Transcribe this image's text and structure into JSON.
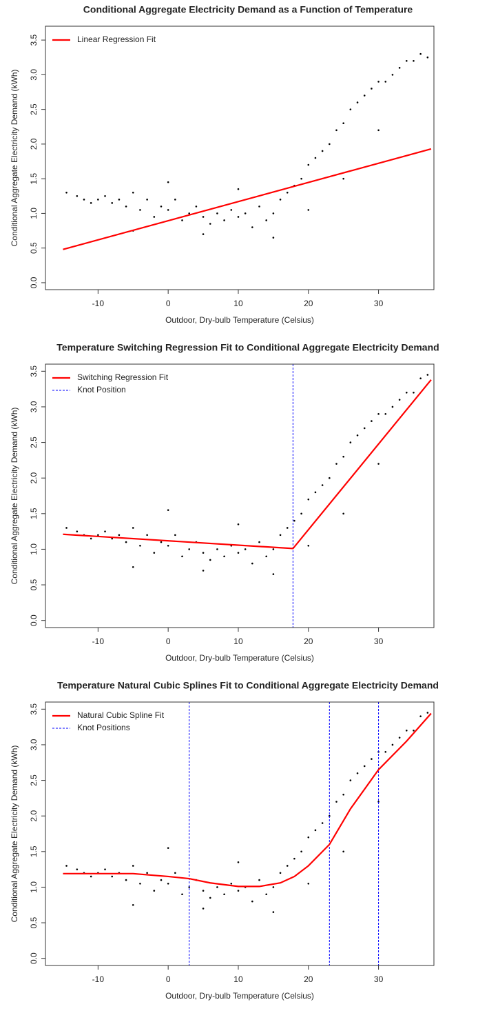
{
  "chart_data": [
    {
      "type": "scatter",
      "title": "Conditional Aggregate Electricity Demand as a Function of Temperature",
      "xlabel": "Outdoor, Dry-bulb Temperature (Celsius)",
      "ylabel": "Conditional Aggregate Electricity Demand (kWh)",
      "xlim": [
        -17.5,
        37.9
      ],
      "ylim": [
        -0.1,
        3.7
      ],
      "xticks": [
        -10,
        0,
        10,
        20,
        30
      ],
      "yticks": [
        {
          "value": 0,
          "label": "0.0"
        },
        0.5,
        {
          "value": 1,
          "label": "1.0"
        },
        1.5,
        {
          "value": 2,
          "label": "2.0"
        },
        2.5,
        {
          "value": 3,
          "label": "3.0"
        },
        3.5
      ],
      "points": {
        "color": "#000000",
        "x": [
          -14.5,
          -13,
          -12,
          -11,
          -10,
          -9,
          -8,
          -7,
          -6,
          -5,
          -4,
          -3,
          -2,
          -1,
          0,
          1,
          2,
          3,
          4,
          5,
          6,
          7,
          8,
          9,
          10,
          11,
          12,
          13,
          14,
          15,
          16,
          17,
          18,
          19,
          20,
          21,
          22,
          23,
          24,
          25,
          26,
          27,
          28,
          29,
          30,
          31,
          32,
          33,
          34,
          35,
          36,
          37,
          -5,
          0,
          5,
          10,
          15,
          20,
          25,
          30
        ],
        "y": [
          1.3,
          1.25,
          1.2,
          1.15,
          1.2,
          1.25,
          1.15,
          1.2,
          1.1,
          1.3,
          1.05,
          1.2,
          0.95,
          1.1,
          1.05,
          1.2,
          0.9,
          1.0,
          1.1,
          0.95,
          0.85,
          1.0,
          0.9,
          1.05,
          0.95,
          1.0,
          0.8,
          1.1,
          0.9,
          1.0,
          1.2,
          1.3,
          1.4,
          1.5,
          1.7,
          1.8,
          1.9,
          2.0,
          2.2,
          2.3,
          2.5,
          2.6,
          2.7,
          2.8,
          2.9,
          2.9,
          3.0,
          3.1,
          3.2,
          3.2,
          3.3,
          3.25,
          0.75,
          1.45,
          0.7,
          1.35,
          0.65,
          1.05,
          1.5,
          2.2
        ]
      },
      "series": [
        {
          "name": "Linear Regression Fit",
          "color": "#ff0000",
          "x": [
            -15,
            37.5
          ],
          "values": [
            0.48,
            1.93
          ]
        }
      ]
    },
    {
      "type": "scatter",
      "title": "Temperature Switching Regression Fit to Conditional Aggregate Electricity Demand",
      "xlabel": "Outdoor, Dry-bulb Temperature (Celsius)",
      "ylabel": "Conditional Aggregate Electricity Demand (kWh)",
      "xlim": [
        -17.5,
        37.9
      ],
      "ylim": [
        -0.1,
        3.6
      ],
      "xticks": [
        -10,
        0,
        10,
        20,
        30
      ],
      "yticks": [
        {
          "value": 0,
          "label": "0.0"
        },
        0.5,
        {
          "value": 1,
          "label": "1.0"
        },
        1.5,
        {
          "value": 2,
          "label": "2.0"
        },
        2.5,
        {
          "value": 3,
          "label": "3.0"
        },
        3.5
      ],
      "points": {
        "color": "#000000",
        "x": [
          -14.5,
          -13,
          -12,
          -11,
          -10,
          -9,
          -8,
          -7,
          -6,
          -5,
          -4,
          -3,
          -2,
          -1,
          0,
          1,
          2,
          3,
          4,
          5,
          6,
          7,
          8,
          9,
          10,
          11,
          12,
          13,
          14,
          15,
          16,
          17,
          18,
          19,
          20,
          21,
          22,
          23,
          24,
          25,
          26,
          27,
          28,
          29,
          30,
          31,
          32,
          33,
          34,
          35,
          36,
          37,
          -5,
          0,
          5,
          10,
          15,
          20,
          25,
          30
        ],
        "y": [
          1.3,
          1.25,
          1.2,
          1.15,
          1.2,
          1.25,
          1.15,
          1.2,
          1.1,
          1.3,
          1.05,
          1.2,
          0.95,
          1.1,
          1.05,
          1.2,
          0.9,
          1.0,
          1.1,
          0.95,
          0.85,
          1.0,
          0.9,
          1.05,
          0.95,
          1.0,
          0.8,
          1.1,
          0.9,
          1.0,
          1.2,
          1.3,
          1.4,
          1.5,
          1.7,
          1.8,
          1.9,
          2.0,
          2.2,
          2.3,
          2.5,
          2.6,
          2.7,
          2.8,
          2.9,
          2.9,
          3.0,
          3.1,
          3.2,
          3.2,
          3.4,
          3.45,
          0.75,
          1.55,
          0.7,
          1.35,
          0.65,
          1.05,
          1.5,
          2.2
        ]
      },
      "series": [
        {
          "name": "Switching Regression Fit",
          "color": "#ff0000",
          "x": [
            -15,
            17.8,
            37.5
          ],
          "values": [
            1.21,
            1.01,
            3.38
          ]
        }
      ],
      "knots": {
        "name": "Knot Position",
        "color": "#0000ff",
        "x": [
          17.8
        ]
      }
    },
    {
      "type": "scatter",
      "title": "Temperature Natural Cubic Splines Fit to Conditional Aggregate Electricity Demand",
      "xlabel": "Outdoor, Dry-bulb Temperature (Celsius)",
      "ylabel": "Conditional Aggregate Electricity Demand (kWh)",
      "xlim": [
        -17.5,
        37.9
      ],
      "ylim": [
        -0.1,
        3.6
      ],
      "xticks": [
        -10,
        0,
        10,
        20,
        30
      ],
      "yticks": [
        {
          "value": 0,
          "label": "0.0"
        },
        0.5,
        {
          "value": 1,
          "label": "1.0"
        },
        1.5,
        {
          "value": 2,
          "label": "2.0"
        },
        2.5,
        {
          "value": 3,
          "label": "3.0"
        },
        3.5
      ],
      "points": {
        "color": "#000000",
        "x": [
          -14.5,
          -13,
          -12,
          -11,
          -10,
          -9,
          -8,
          -7,
          -6,
          -5,
          -4,
          -3,
          -2,
          -1,
          0,
          1,
          2,
          3,
          4,
          5,
          6,
          7,
          8,
          9,
          10,
          11,
          12,
          13,
          14,
          15,
          16,
          17,
          18,
          19,
          20,
          21,
          22,
          23,
          24,
          25,
          26,
          27,
          28,
          29,
          30,
          31,
          32,
          33,
          34,
          35,
          36,
          37,
          -5,
          0,
          5,
          10,
          15,
          20,
          25,
          30
        ],
        "y": [
          1.3,
          1.25,
          1.2,
          1.15,
          1.2,
          1.25,
          1.15,
          1.2,
          1.1,
          1.3,
          1.05,
          1.2,
          0.95,
          1.1,
          1.05,
          1.2,
          0.9,
          1.0,
          1.1,
          0.95,
          0.85,
          1.0,
          0.9,
          1.05,
          0.95,
          1.0,
          0.8,
          1.1,
          0.9,
          1.0,
          1.2,
          1.3,
          1.4,
          1.5,
          1.7,
          1.8,
          1.9,
          2.0,
          2.2,
          2.3,
          2.5,
          2.6,
          2.7,
          2.8,
          2.9,
          2.9,
          3.0,
          3.1,
          3.2,
          3.2,
          3.4,
          3.45,
          0.75,
          1.55,
          0.7,
          1.35,
          0.65,
          1.05,
          1.5,
          2.2
        ]
      },
      "series": [
        {
          "name": "Natural Cubic Spline Fit",
          "color": "#ff0000",
          "x": [
            -15,
            -5,
            0,
            3,
            6,
            10,
            13,
            16,
            18,
            20,
            23,
            26,
            30,
            34,
            37.5
          ],
          "values": [
            1.19,
            1.19,
            1.15,
            1.12,
            1.06,
            1.01,
            1.01,
            1.06,
            1.15,
            1.3,
            1.6,
            2.1,
            2.65,
            3.05,
            3.44
          ]
        }
      ],
      "knots": {
        "name": "Knot Positions",
        "color": "#0000ff",
        "x": [
          3,
          23,
          30
        ]
      }
    }
  ]
}
